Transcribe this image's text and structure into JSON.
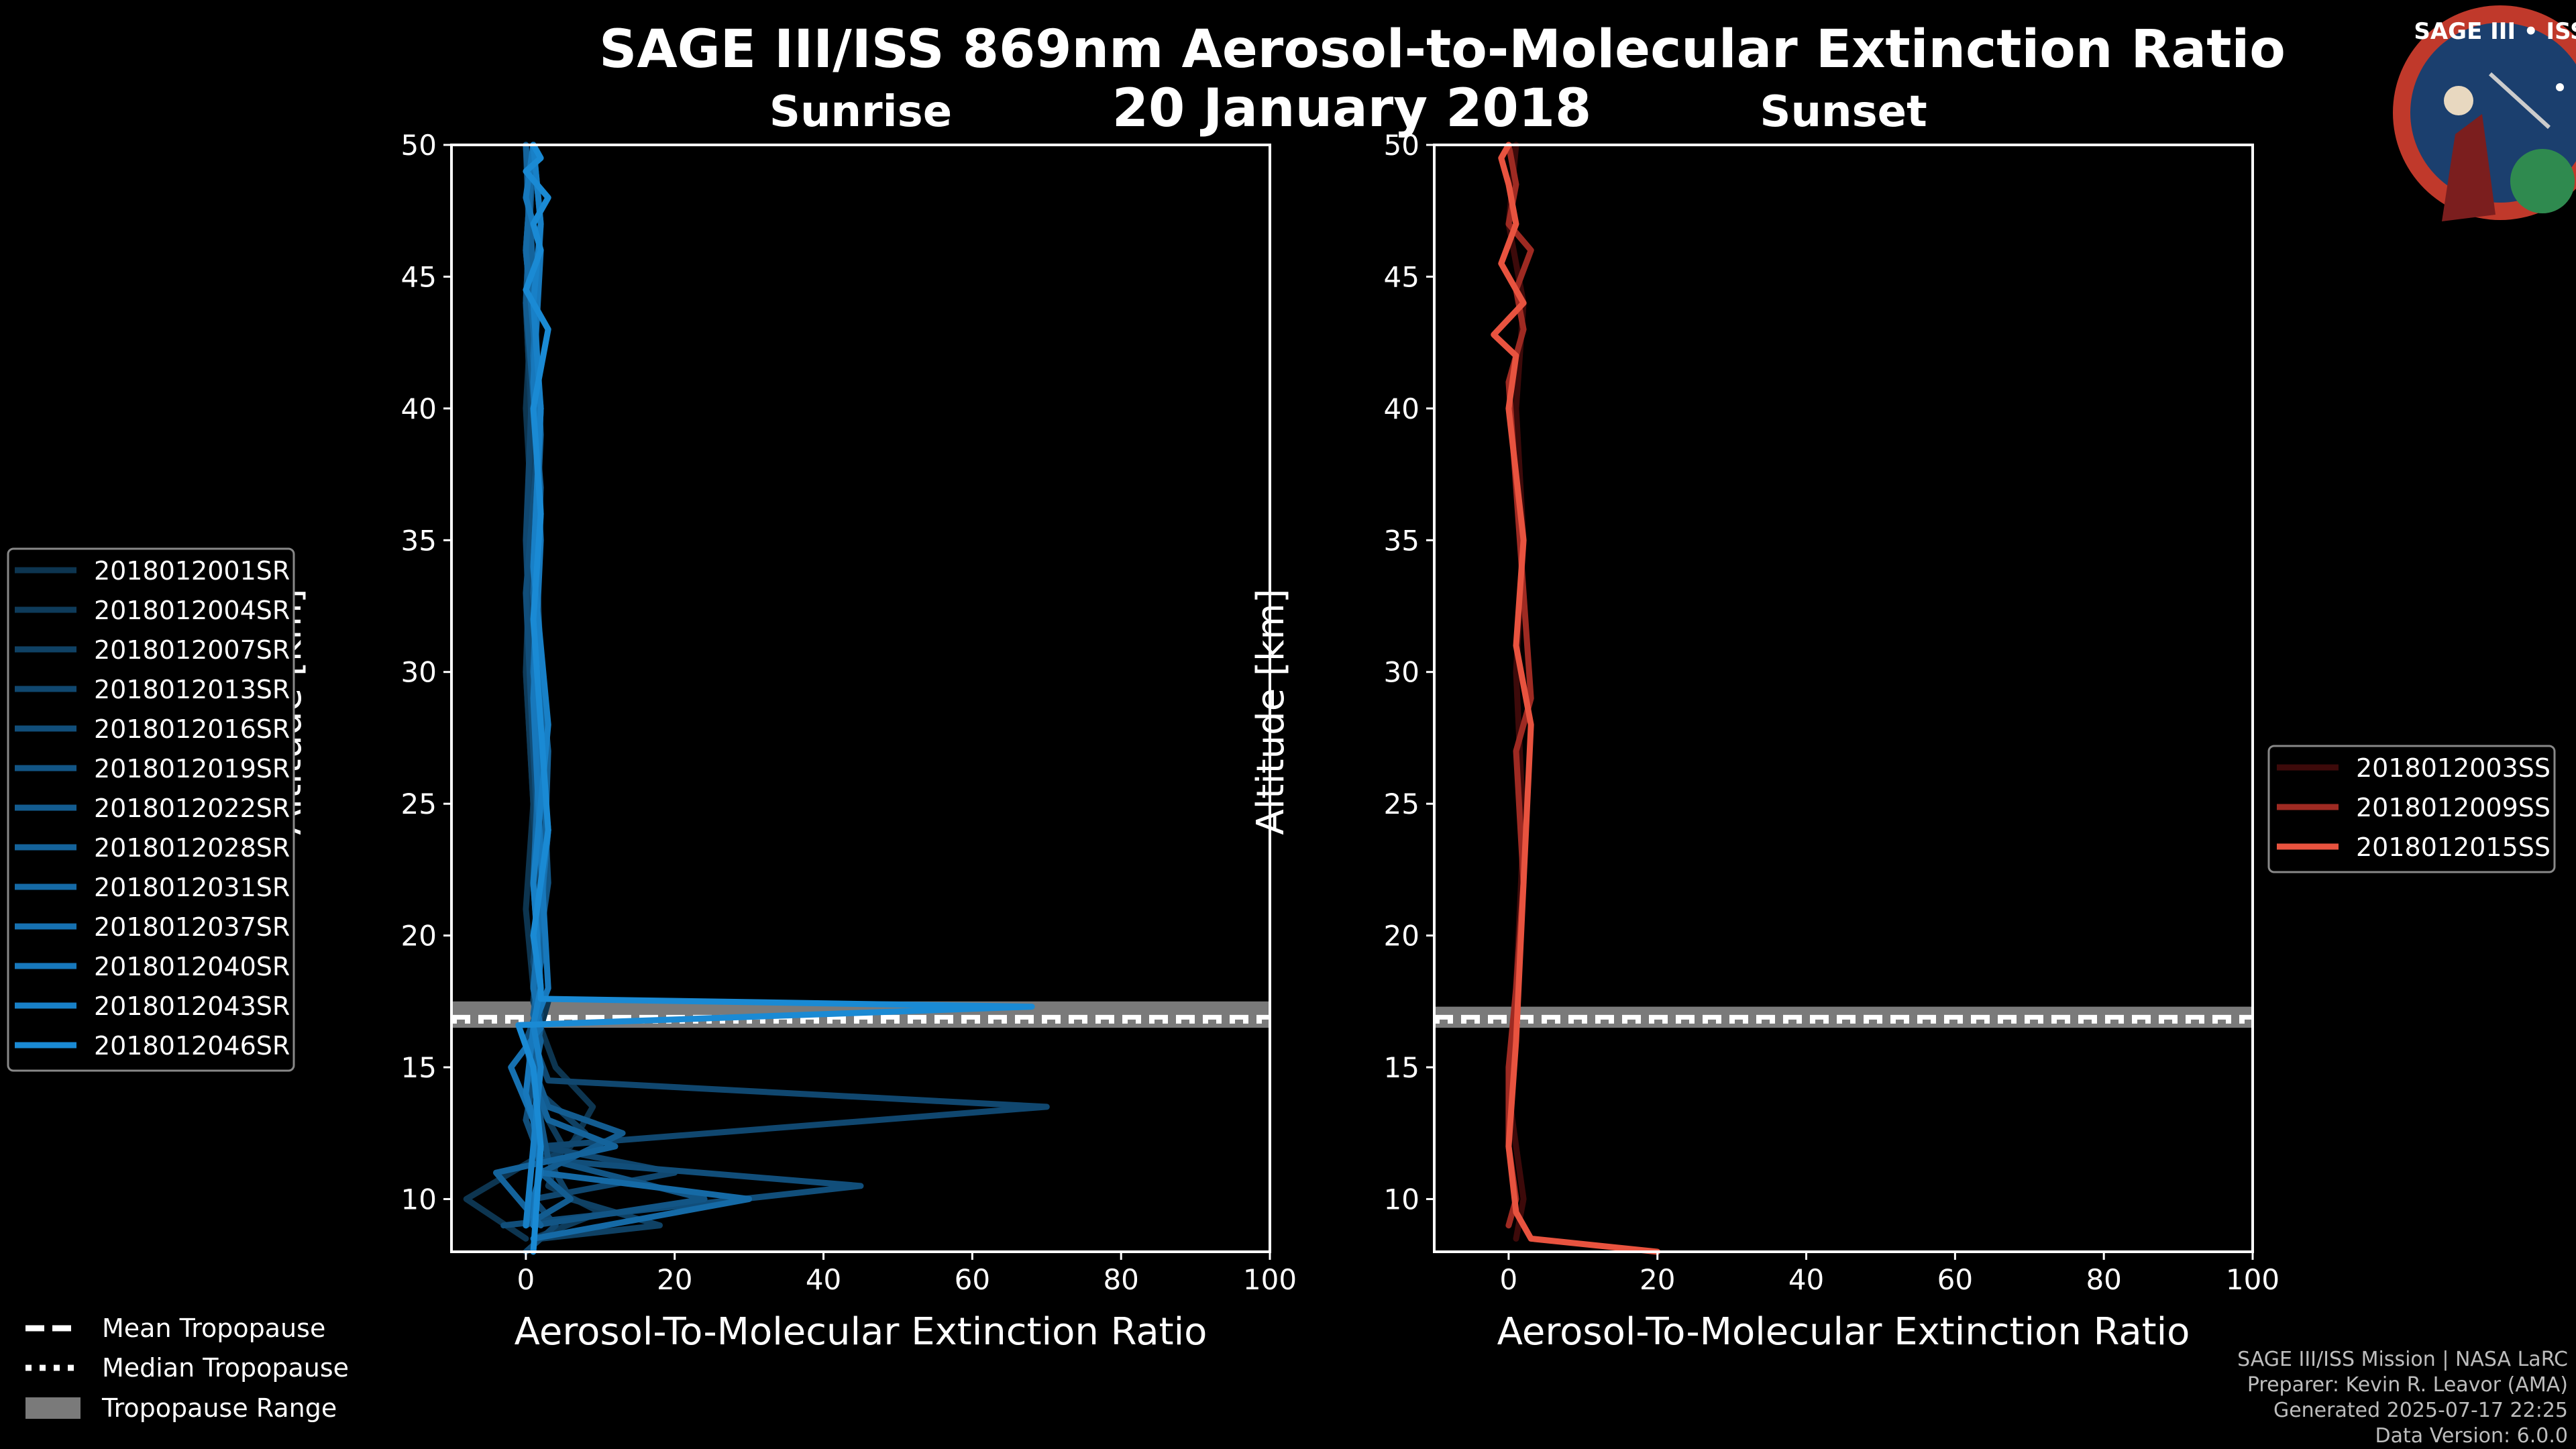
{
  "title": "SAGE III/ISS 869nm Aerosol-to-Molecular Extinction Ratio",
  "date": "20 January 2018",
  "chart_data": [
    {
      "type": "line",
      "panel": "Sunrise",
      "title": "Sunrise",
      "xlabel": "Aerosol-To-Molecular Extinction Ratio",
      "ylabel": "Altitude [km]",
      "xlim": [
        -10,
        100
      ],
      "ylim": [
        8,
        50
      ],
      "xticks": [
        0,
        20,
        40,
        60,
        80,
        100
      ],
      "yticks": [
        10,
        15,
        20,
        25,
        30,
        35,
        40,
        45,
        50
      ],
      "tropopause": {
        "mean": 16.9,
        "median": 16.9,
        "range": [
          16.5,
          17.5
        ]
      },
      "series": [
        {
          "name": "2018012001SR",
          "color": "#0d3550",
          "x": [
            0,
            -8,
            1,
            6,
            9,
            4,
            2,
            3,
            1,
            0,
            1,
            0,
            1,
            0,
            1,
            0
          ],
          "y": [
            8.5,
            10,
            11.5,
            12,
            13.5,
            15,
            16.5,
            17.5,
            18,
            21,
            25,
            30,
            35,
            40,
            45,
            50
          ]
        },
        {
          "name": "2018012004SR",
          "color": "#0e3b5a",
          "x": [
            1,
            10,
            3,
            5,
            2,
            1,
            2,
            1,
            2,
            1,
            0,
            1,
            0,
            1
          ],
          "y": [
            8.5,
            9.5,
            10.5,
            12,
            13.5,
            15,
            16.5,
            17.5,
            20,
            25,
            30,
            38,
            44,
            50
          ]
        },
        {
          "name": "2018012007SR",
          "color": "#0f4164",
          "x": [
            2,
            18,
            6,
            3,
            8,
            2,
            1,
            2,
            1,
            2,
            1,
            2,
            1,
            0,
            1
          ],
          "y": [
            8.5,
            9,
            10,
            11.5,
            12.5,
            14,
            15.5,
            16.5,
            17.5,
            20,
            25,
            30,
            38,
            44,
            50
          ]
        },
        {
          "name": "2018012013SR",
          "color": "#10476f",
          "x": [
            0,
            4,
            1,
            20,
            2,
            70,
            3,
            1,
            2,
            1,
            2,
            1,
            0,
            1,
            0
          ],
          "y": [
            8,
            9,
            10,
            11,
            12,
            13.5,
            14.5,
            16,
            17,
            18,
            22,
            28,
            35,
            42,
            50
          ]
        },
        {
          "name": "2018012016SR",
          "color": "#114e7a",
          "x": [
            -3,
            45,
            2,
            0,
            1,
            0,
            2,
            1,
            2,
            1,
            0,
            2,
            0,
            1
          ],
          "y": [
            9,
            10.5,
            11.5,
            13,
            14.5,
            16,
            17.5,
            19,
            22,
            27,
            33,
            40,
            46,
            50
          ]
        },
        {
          "name": "2018012019SR",
          "color": "#125585",
          "x": [
            1,
            24,
            3,
            2,
            1,
            2,
            1,
            3,
            2,
            1,
            2,
            0,
            1
          ],
          "y": [
            9,
            10,
            11.5,
            13,
            15,
            16.5,
            18,
            22,
            28,
            34,
            40,
            46,
            50
          ]
        },
        {
          "name": "2018012022SR",
          "color": "#135c90",
          "x": [
            0,
            6,
            2,
            13,
            3,
            1,
            2,
            1,
            3,
            1,
            2,
            0,
            1
          ],
          "y": [
            9,
            10,
            11,
            12.5,
            13.5,
            15,
            16.5,
            18,
            24,
            30,
            37,
            44,
            50
          ]
        },
        {
          "name": "2018012028SR",
          "color": "#14639b",
          "x": [
            2,
            -4,
            12,
            3,
            1,
            2,
            1,
            2,
            3,
            1,
            2,
            1,
            0
          ],
          "y": [
            9,
            11,
            12,
            13,
            14.5,
            16,
            17,
            19,
            27,
            33,
            39,
            45,
            50
          ]
        },
        {
          "name": "2018012031SR",
          "color": "#156aa6",
          "x": [
            1,
            30,
            2,
            1,
            2,
            1,
            2,
            1,
            2,
            1,
            2,
            0,
            1
          ],
          "y": [
            8.5,
            10,
            11,
            13,
            15,
            16.5,
            18,
            22,
            28,
            34,
            40,
            46,
            50
          ]
        },
        {
          "name": "2018012037SR",
          "color": "#1671b1",
          "x": [
            0,
            2,
            1,
            -2,
            2,
            1,
            3,
            1,
            2,
            1,
            2,
            1
          ],
          "y": [
            9,
            11,
            13,
            15,
            16.5,
            18,
            24,
            30,
            36,
            42,
            47,
            50
          ]
        },
        {
          "name": "2018012040SR",
          "color": "#1778bc",
          "x": [
            1,
            2,
            0,
            1,
            3,
            2,
            1,
            2,
            1,
            2,
            0,
            1
          ],
          "y": [
            9,
            12,
            14,
            16.5,
            18,
            23,
            29,
            35,
            41,
            46,
            48,
            50
          ]
        },
        {
          "name": "2018012043SR",
          "color": "#1880c7",
          "x": [
            0,
            1,
            2,
            1,
            2,
            1,
            3,
            1,
            2,
            1,
            2,
            1
          ],
          "y": [
            9,
            12,
            15,
            16.6,
            18,
            22,
            28,
            34,
            40,
            44,
            47,
            50
          ]
        },
        {
          "name": "2018012046SR",
          "color": "#1a8ad4",
          "x": [
            1,
            2,
            1,
            -1,
            68,
            2,
            2,
            1,
            3,
            2,
            1,
            2,
            1,
            3,
            0,
            2,
            1,
            3,
            0,
            2,
            1
          ],
          "y": [
            8,
            12,
            15,
            16.6,
            17.3,
            17.6,
            18,
            20,
            24,
            28,
            32,
            36,
            40,
            43,
            44.5,
            46,
            47,
            48,
            49,
            49.5,
            50
          ]
        }
      ]
    },
    {
      "type": "line",
      "panel": "Sunset",
      "title": "Sunset",
      "xlabel": "Aerosol-To-Molecular Extinction Ratio",
      "ylabel": "Altitude [km]",
      "xlim": [
        -10,
        100
      ],
      "ylim": [
        8,
        50
      ],
      "xticks": [
        0,
        20,
        40,
        60,
        80,
        100
      ],
      "yticks": [
        10,
        15,
        20,
        25,
        30,
        35,
        40,
        45,
        50
      ],
      "tropopause": {
        "mean": 16.9,
        "median": 16.9,
        "range": [
          16.5,
          17.3
        ]
      },
      "series": [
        {
          "name": "2018012003SS",
          "color": "#3d0a0a",
          "x": [
            1,
            2,
            0,
            1,
            2,
            1,
            2,
            1,
            2,
            0,
            1
          ],
          "y": [
            8.5,
            10,
            14,
            18,
            24,
            30,
            35,
            40,
            44,
            47,
            50
          ]
        },
        {
          "name": "2018012009SS",
          "color": "#9e2a22",
          "x": [
            0,
            1,
            0,
            0,
            1,
            2,
            1,
            3,
            2,
            1,
            0,
            2,
            1,
            3,
            0,
            1,
            0
          ],
          "y": [
            9,
            10,
            12,
            15,
            18,
            22,
            27,
            29,
            33,
            37,
            41,
            43,
            44.5,
            46,
            47,
            48.5,
            50
          ]
        },
        {
          "name": "2018012015SS",
          "color": "#e8533f",
          "x": [
            20,
            3,
            1,
            0,
            1,
            2,
            3,
            1,
            2,
            0,
            1,
            -2,
            2,
            -1,
            1,
            0,
            -1,
            0
          ],
          "y": [
            8,
            8.5,
            9.5,
            12,
            16,
            22,
            28,
            31,
            35,
            40,
            42,
            42.8,
            44,
            45.5,
            47,
            48.5,
            49.5,
            50
          ]
        }
      ]
    }
  ],
  "footer_legend": {
    "mean": "Mean Tropopause",
    "median": "Median Tropopause",
    "range": "Tropopause Range"
  },
  "credits": [
    "SAGE III/ISS Mission | NASA LaRC",
    "Preparer: Kevin R. Leavor (AMA)",
    "Generated 2025-07-17 22:25",
    "Data Version: 6.0.0"
  ],
  "logo": {
    "label": "SAGE III • ISS"
  }
}
